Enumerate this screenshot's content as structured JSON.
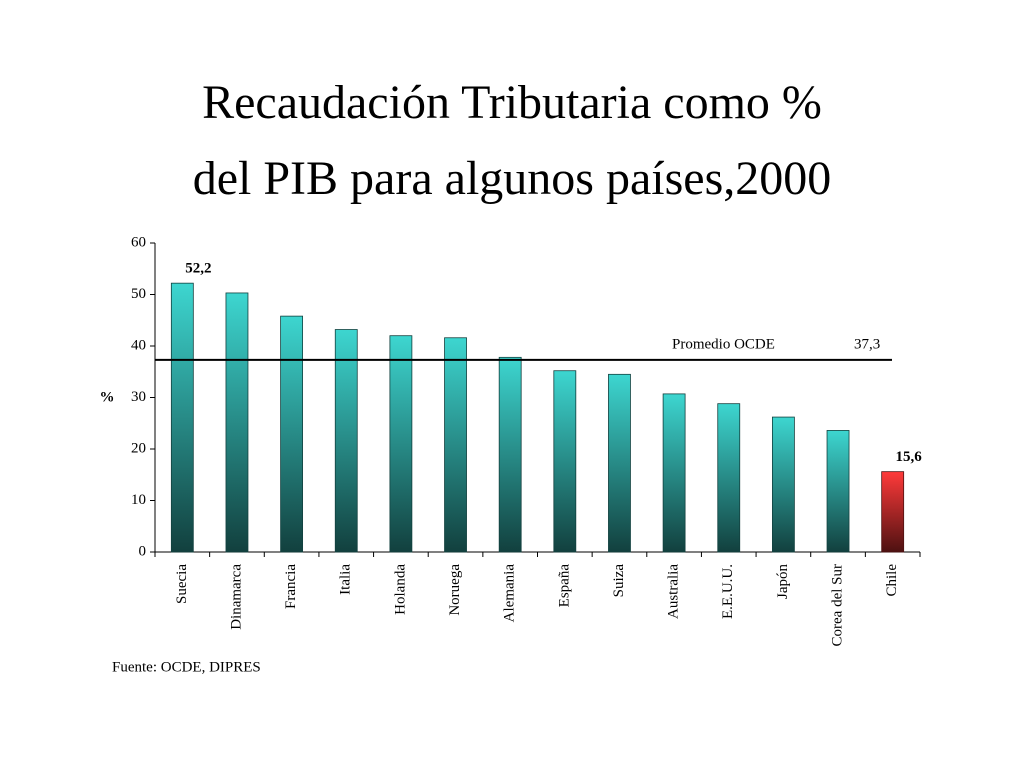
{
  "chart_data": {
    "type": "bar",
    "title": [
      "Recaudación Tributaria como %",
      "del PIB para algunos países,2000"
    ],
    "y_label": "%",
    "source": "Fuente: OCDE, DIPRES",
    "categories": [
      "Suecia",
      "Dinamarca",
      "Francia",
      "Italia",
      "Holanda",
      "Noruega",
      "Alemania",
      "España",
      "Suiza",
      "Australia",
      "E.E.U.U.",
      "Japón",
      "Corea del Sur",
      "Chile"
    ],
    "values": [
      52.2,
      50.3,
      45.8,
      43.2,
      42.0,
      41.6,
      37.8,
      35.2,
      34.5,
      30.7,
      28.8,
      26.2,
      23.6,
      15.6
    ],
    "value_labels": [
      "52,2",
      null,
      null,
      null,
      null,
      null,
      null,
      null,
      null,
      null,
      null,
      null,
      null,
      "15,6"
    ],
    "colors": [
      "#3dd6d0",
      "#3dd6d0",
      "#3dd6d0",
      "#3dd6d0",
      "#3dd6d0",
      "#3dd6d0",
      "#3dd6d0",
      "#3dd6d0",
      "#3dd6d0",
      "#3dd6d0",
      "#3dd6d0",
      "#3dd6d0",
      "#3dd6d0",
      "#ff3a3a"
    ],
    "reference_line": {
      "name": "Promedio OCDE",
      "value": 37.3,
      "label": "37,3"
    },
    "ylim": [
      0,
      60
    ],
    "yticks": [
      0,
      10,
      20,
      30,
      40,
      50,
      60
    ]
  }
}
